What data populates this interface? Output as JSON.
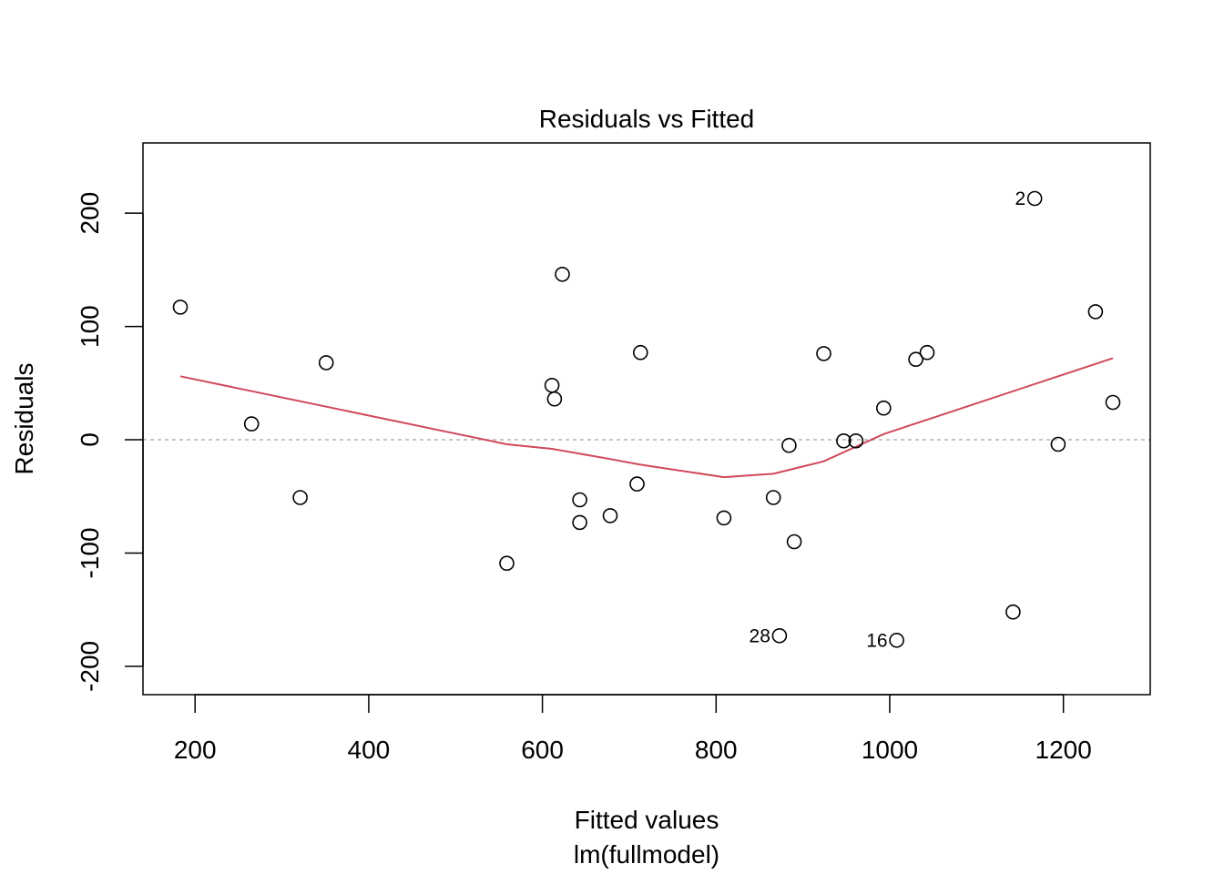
{
  "chart_data": {
    "type": "scatter",
    "title": "Residuals vs Fitted",
    "xlabel": "Fitted values",
    "subtitle": "lm(fullmodel)",
    "ylabel": "Residuals",
    "xlim": [
      140,
      1300
    ],
    "ylim": [
      -225,
      262
    ],
    "x_ticks": [
      200,
      400,
      600,
      800,
      1000,
      1200
    ],
    "x_tick_labels": [
      "200",
      "400",
      "600",
      "800",
      "1000",
      "1200"
    ],
    "y_ticks": [
      -200,
      -100,
      0,
      100,
      200
    ],
    "y_tick_labels": [
      "-200",
      "-100",
      "0",
      "100",
      "200"
    ],
    "grid": false,
    "reference_line": {
      "y": 0,
      "style": "dashed",
      "color": "#b3b3b3"
    },
    "points": [
      {
        "x": 183,
        "y": 117
      },
      {
        "x": 265,
        "y": 14
      },
      {
        "x": 321,
        "y": -51
      },
      {
        "x": 351,
        "y": 68
      },
      {
        "x": 559,
        "y": -109
      },
      {
        "x": 611,
        "y": 48
      },
      {
        "x": 614,
        "y": 36
      },
      {
        "x": 623,
        "y": 146
      },
      {
        "x": 643,
        "y": -53
      },
      {
        "x": 643,
        "y": -73
      },
      {
        "x": 678,
        "y": -67
      },
      {
        "x": 709,
        "y": -39
      },
      {
        "x": 713,
        "y": 77
      },
      {
        "x": 809,
        "y": -69
      },
      {
        "x": 866,
        "y": -51
      },
      {
        "x": 873,
        "y": -173,
        "label": "28"
      },
      {
        "x": 884,
        "y": -5
      },
      {
        "x": 890,
        "y": -90
      },
      {
        "x": 924,
        "y": 76
      },
      {
        "x": 947,
        "y": -1
      },
      {
        "x": 961,
        "y": -1
      },
      {
        "x": 993,
        "y": 28
      },
      {
        "x": 1008,
        "y": -177,
        "label": "16"
      },
      {
        "x": 1030,
        "y": 71
      },
      {
        "x": 1043,
        "y": 77
      },
      {
        "x": 1142,
        "y": -152
      },
      {
        "x": 1167,
        "y": 213,
        "label": "2"
      },
      {
        "x": 1194,
        "y": -4
      },
      {
        "x": 1237,
        "y": 113
      },
      {
        "x": 1257,
        "y": 33
      }
    ],
    "smooth_line": {
      "color": "#d1495b",
      "x": [
        183,
        559,
        611,
        678,
        713,
        809,
        866,
        924,
        993,
        1257
      ],
      "y": [
        56,
        -4,
        -8,
        -17,
        -22,
        -33,
        -30,
        -19,
        5,
        72
      ]
    }
  }
}
